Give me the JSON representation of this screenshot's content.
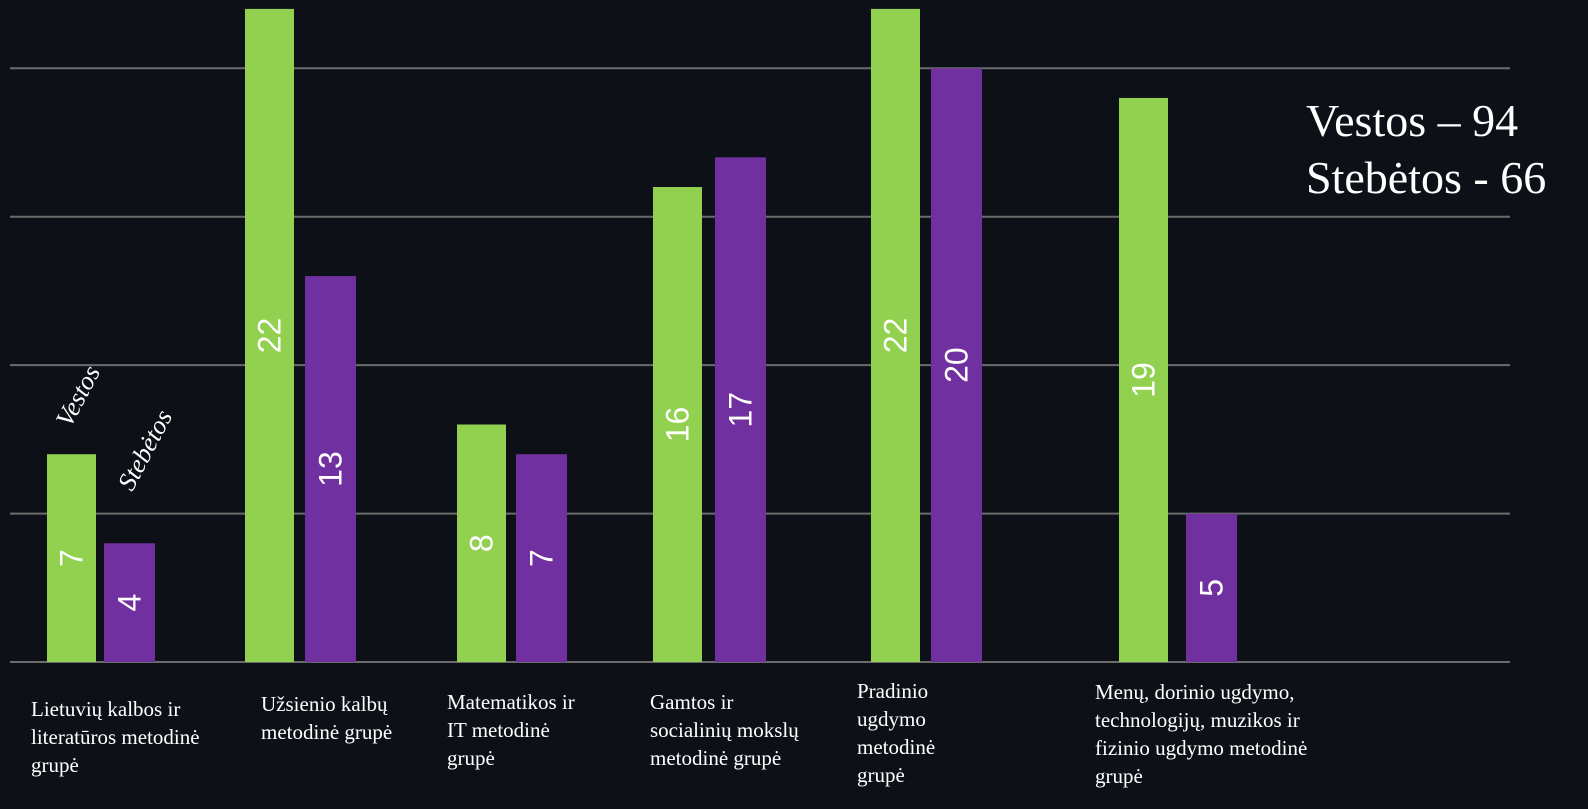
{
  "chart_data": {
    "type": "bar",
    "categories": [
      "Lietuvių kalbos ir literatūros metodinė grupė",
      "Užsienio kalbų metodinė grupė",
      "Matematikos ir IT metodinė grupė",
      "Gamtos ir socialinių mokslų metodinė grupė",
      "Pradinio ugdymo metodinė grupė",
      "Menų, dorinio ugdymo, technologijų, muzikos ir fizinio ugdymo metodinė grupė"
    ],
    "series": [
      {
        "name": "Vestos",
        "color": "#92d050",
        "values": [
          7,
          22,
          8,
          16,
          22,
          19
        ]
      },
      {
        "name": "Stebėtos",
        "color": "#7030a0",
        "values": [
          4,
          13,
          7,
          17,
          20,
          5
        ]
      }
    ],
    "ylim": [
      0,
      22.3
    ],
    "yticks": [
      0,
      5,
      10,
      15,
      20
    ],
    "grid": true,
    "annotations": [
      "Vestos – 94",
      "Stebėtos - 66"
    ]
  }
}
